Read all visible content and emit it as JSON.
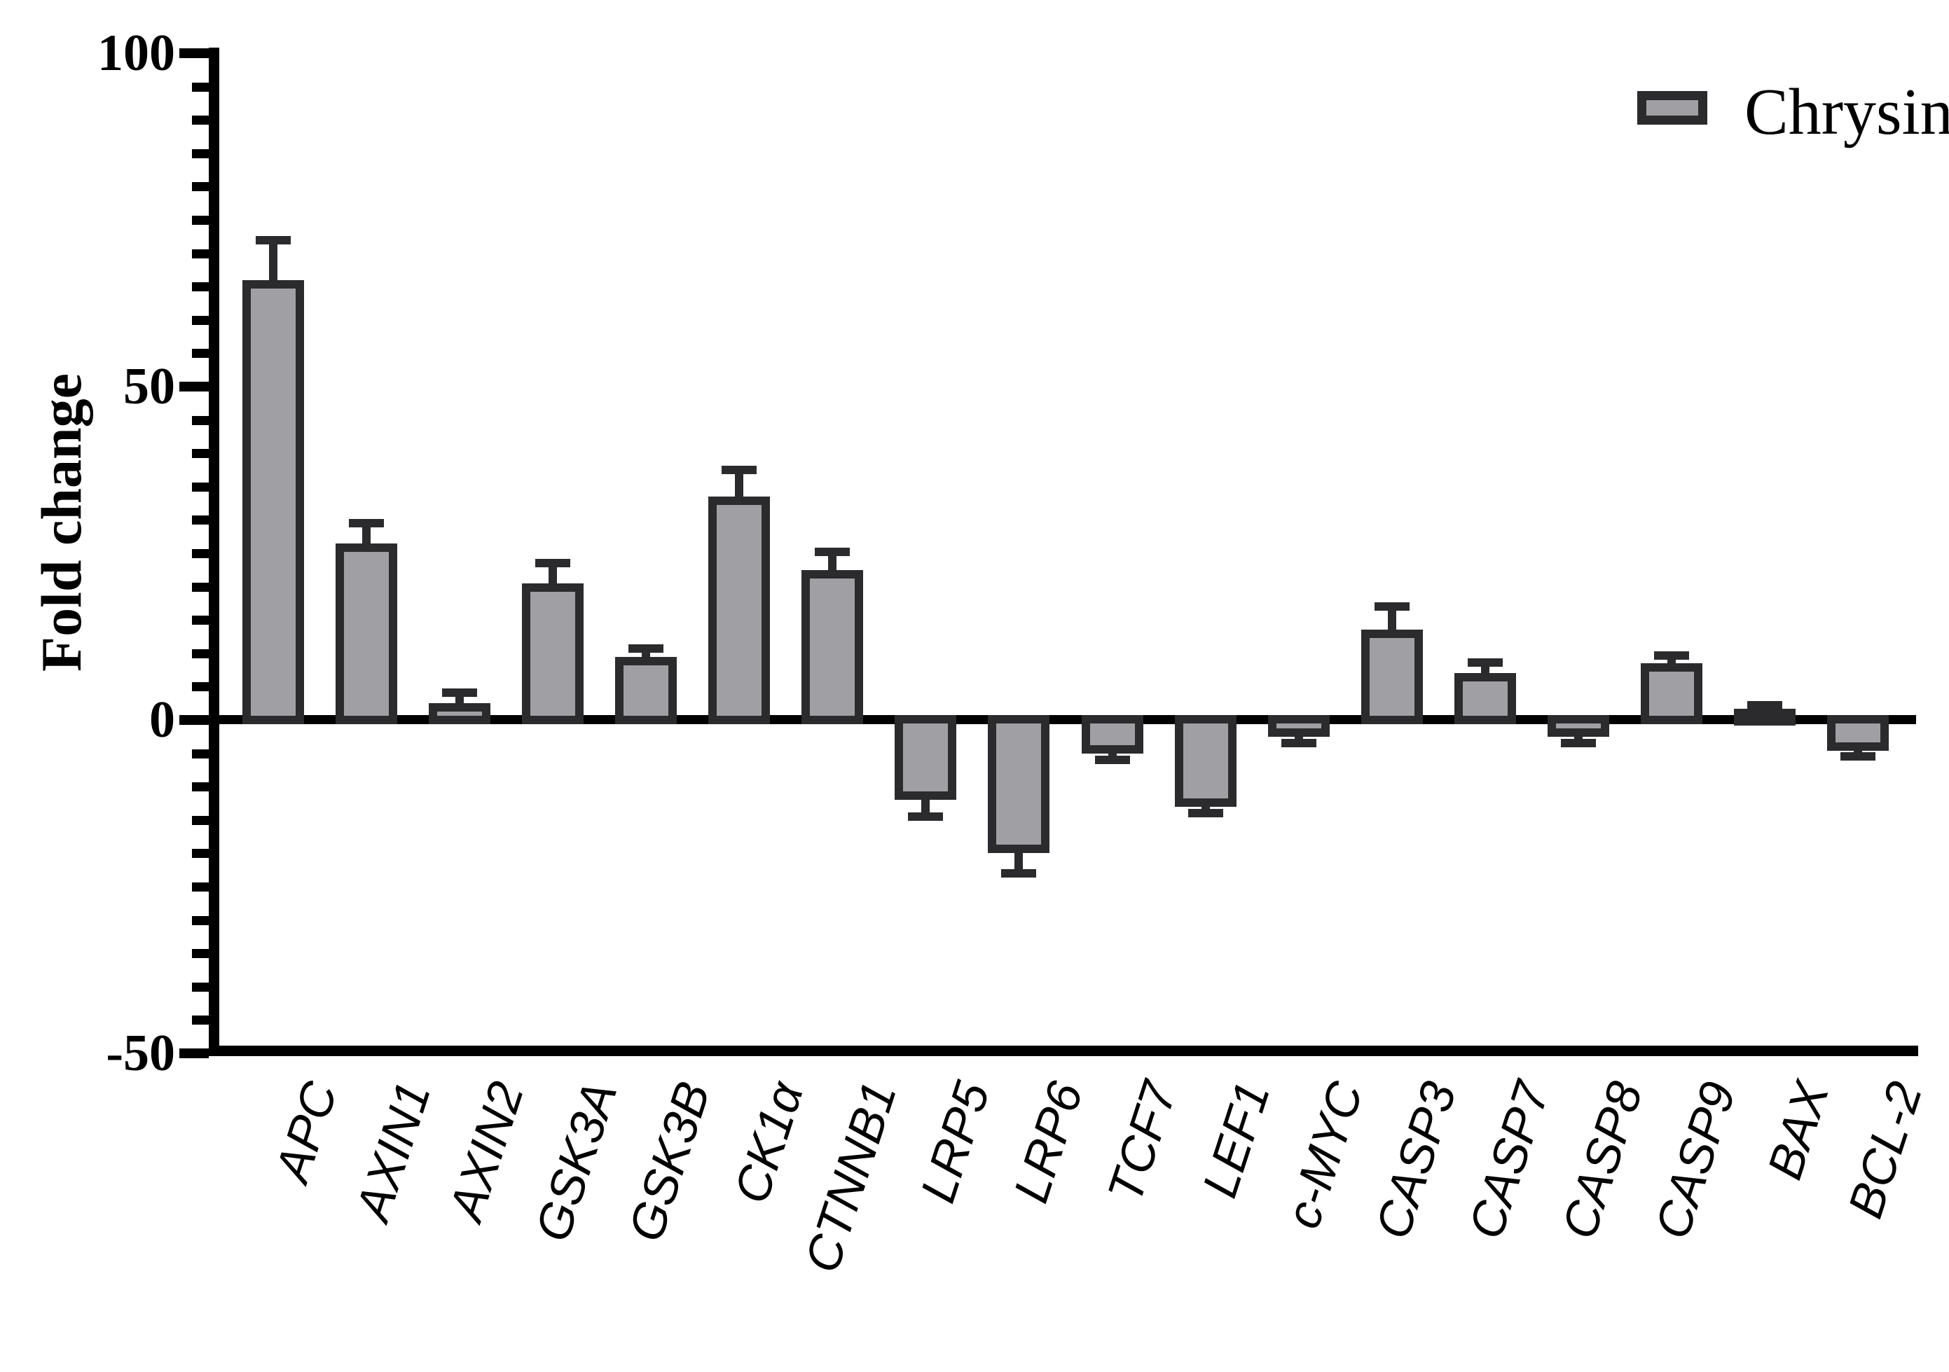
{
  "chart_data": {
    "type": "bar",
    "title": "",
    "ylabel": "Fold change",
    "xlabel": "",
    "categories": [
      "APC",
      "AXIN1",
      "AXIN2",
      "GSK3A",
      "GSK3B",
      "CK1α",
      "CTNNB1",
      "LRP5",
      "LRP6",
      "TCF7",
      "LEF1",
      "c-MYC",
      "CASP3",
      "CASP7",
      "CASP8",
      "CASP9",
      "BAX",
      "BCL-2"
    ],
    "series": [
      {
        "name": "Chrysin",
        "values": [
          66,
          26.5,
          2.5,
          20.5,
          9.5,
          33.5,
          22.5,
          -12,
          -20,
          -5,
          -13,
          -2.5,
          13.5,
          7,
          -2.5,
          8.5,
          1.7,
          -4.6
        ],
        "errors": [
          6,
          3,
          1.6,
          3,
          1.2,
          4,
          2.7,
          2.5,
          3,
          1,
          1,
          1,
          3.5,
          1.6,
          1,
          1.2,
          0.5,
          0.9
        ]
      }
    ],
    "ylim": [
      -50,
      100
    ],
    "yticks": [
      100,
      50,
      0,
      -50
    ],
    "minor_tick_step": 5,
    "grid": "off",
    "error_bars": "one-sided, away from zero",
    "legend": {
      "label": "Chrysin",
      "position": "top-right"
    },
    "colors": {
      "bar_fill": "#a0a0a4",
      "bar_border": "#2b2b2d",
      "axis": "#000000",
      "background": "#ffffff"
    }
  }
}
